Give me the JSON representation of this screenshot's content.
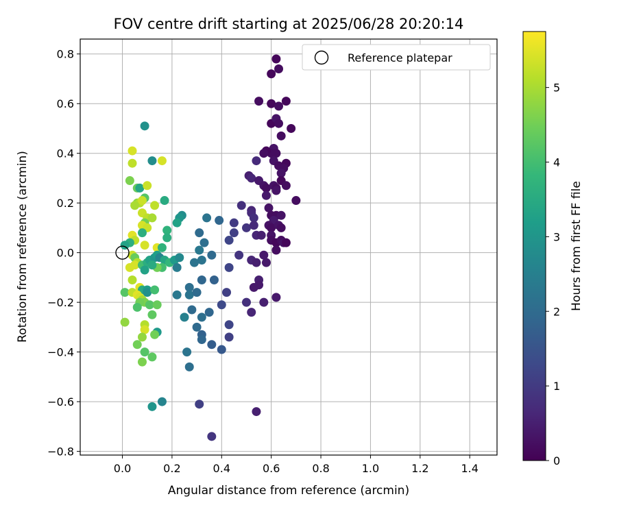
{
  "chart_data": {
    "type": "scatter",
    "title": "FOV centre drift starting at 2025/06/28 20:20:14",
    "xlabel": "Angular distance from reference (arcmin)",
    "ylabel": "Rotation from reference (arcmin)",
    "xlim": [
      -0.17,
      1.51
    ],
    "ylim": [
      -0.815,
      0.86
    ],
    "xticks": [
      0.0,
      0.2,
      0.4,
      0.6,
      0.8,
      1.0,
      1.2,
      1.4
    ],
    "xtick_labels": [
      "0.0",
      "0.2",
      "0.4",
      "0.6",
      "0.8",
      "1.0",
      "1.2",
      "1.4"
    ],
    "yticks": [
      -0.8,
      -0.6,
      -0.4,
      -0.2,
      0.0,
      0.2,
      0.4,
      0.6,
      0.8
    ],
    "ytick_labels": [
      "−0.8",
      "−0.6",
      "−0.4",
      "−0.2",
      "0.0",
      "0.2",
      "0.4",
      "0.6",
      "0.8"
    ],
    "grid": true,
    "legend": {
      "placement": "top-right",
      "entries": [
        {
          "label": "Reference platepar",
          "marker": "open-circle",
          "x": 0.0,
          "y": 0.0
        }
      ]
    },
    "colorbar": {
      "label": "Hours from first FF file",
      "colormap": "viridis",
      "range": [
        0,
        5.75
      ],
      "ticks": [
        0,
        1,
        2,
        3,
        4,
        5
      ],
      "tick_labels": [
        "0",
        "1",
        "2",
        "3",
        "4",
        "5"
      ]
    },
    "colormap_stops": [
      "#440154",
      "#482878",
      "#3e4989",
      "#31688e",
      "#26828e",
      "#1f9e89",
      "#35b779",
      "#6ece58",
      "#b5de2b",
      "#fde725"
    ],
    "points_columns": [
      "x",
      "y",
      "hours"
    ],
    "points": [
      [
        0.62,
        0.78,
        0.1
      ],
      [
        0.63,
        0.74,
        0.2
      ],
      [
        0.6,
        0.72,
        0.1
      ],
      [
        0.55,
        0.61,
        0.2
      ],
      [
        0.6,
        0.6,
        0.1
      ],
      [
        0.63,
        0.59,
        0.2
      ],
      [
        0.66,
        0.61,
        0.1
      ],
      [
        0.6,
        0.52,
        0.1
      ],
      [
        0.62,
        0.54,
        0.3
      ],
      [
        0.63,
        0.52,
        0.2
      ],
      [
        0.68,
        0.5,
        0.1
      ],
      [
        0.64,
        0.47,
        0.2
      ],
      [
        0.61,
        0.42,
        0.3
      ],
      [
        0.6,
        0.4,
        0.2
      ],
      [
        0.58,
        0.41,
        0.1
      ],
      [
        0.57,
        0.4,
        0.2
      ],
      [
        0.62,
        0.4,
        0.2
      ],
      [
        0.61,
        0.37,
        0.3
      ],
      [
        0.63,
        0.35,
        0.2
      ],
      [
        0.66,
        0.36,
        0.1
      ],
      [
        0.65,
        0.34,
        0.2
      ],
      [
        0.64,
        0.32,
        0.3
      ],
      [
        0.54,
        0.37,
        0.7
      ],
      [
        0.51,
        0.31,
        0.5
      ],
      [
        0.52,
        0.3,
        0.6
      ],
      [
        0.55,
        0.29,
        0.4
      ],
      [
        0.57,
        0.27,
        0.3
      ],
      [
        0.58,
        0.26,
        0.2
      ],
      [
        0.61,
        0.27,
        0.3
      ],
      [
        0.62,
        0.26,
        0.2
      ],
      [
        0.64,
        0.29,
        0.1
      ],
      [
        0.66,
        0.27,
        0.2
      ],
      [
        0.62,
        0.25,
        0.3
      ],
      [
        0.58,
        0.23,
        0.4
      ],
      [
        0.7,
        0.21,
        0.2
      ],
      [
        0.48,
        0.19,
        0.8
      ],
      [
        0.52,
        0.17,
        0.6
      ],
      [
        0.52,
        0.16,
        0.7
      ],
      [
        0.53,
        0.14,
        0.8
      ],
      [
        0.59,
        0.18,
        0.3
      ],
      [
        0.6,
        0.15,
        0.2
      ],
      [
        0.62,
        0.15,
        0.2
      ],
      [
        0.64,
        0.15,
        0.3
      ],
      [
        0.61,
        0.13,
        0.4
      ],
      [
        0.59,
        0.11,
        0.3
      ],
      [
        0.6,
        0.1,
        0.2
      ],
      [
        0.63,
        0.11,
        0.3
      ],
      [
        0.64,
        0.1,
        0.2
      ],
      [
        0.5,
        0.1,
        0.9
      ],
      [
        0.53,
        0.11,
        0.7
      ],
      [
        0.45,
        0.12,
        1.0
      ],
      [
        0.45,
        0.08,
        1.1
      ],
      [
        0.43,
        0.05,
        1.2
      ],
      [
        0.54,
        0.07,
        0.6
      ],
      [
        0.56,
        0.07,
        0.5
      ],
      [
        0.6,
        0.07,
        0.3
      ],
      [
        0.6,
        0.05,
        0.2
      ],
      [
        0.62,
        0.04,
        0.1
      ],
      [
        0.64,
        0.05,
        0.2
      ],
      [
        0.65,
        0.04,
        0.3
      ],
      [
        0.66,
        0.04,
        0.1
      ],
      [
        0.62,
        0.01,
        0.2
      ],
      [
        0.57,
        -0.01,
        0.4
      ],
      [
        0.52,
        -0.03,
        0.6
      ],
      [
        0.54,
        -0.04,
        0.5
      ],
      [
        0.58,
        -0.04,
        0.4
      ],
      [
        0.47,
        -0.01,
        0.9
      ],
      [
        0.43,
        -0.06,
        1.2
      ],
      [
        0.55,
        -0.11,
        0.5
      ],
      [
        0.55,
        -0.13,
        0.4
      ],
      [
        0.53,
        -0.14,
        0.4
      ],
      [
        0.42,
        -0.16,
        1.1
      ],
      [
        0.4,
        -0.21,
        1.3
      ],
      [
        0.5,
        -0.2,
        0.8
      ],
      [
        0.57,
        -0.2,
        0.5
      ],
      [
        0.52,
        -0.24,
        0.6
      ],
      [
        0.62,
        -0.18,
        0.4
      ],
      [
        0.43,
        -0.29,
        1.2
      ],
      [
        0.43,
        -0.34,
        1.1
      ],
      [
        0.54,
        -0.64,
        0.5
      ],
      [
        0.36,
        -0.74,
        0.9
      ],
      [
        0.31,
        -0.61,
        1.1
      ],
      [
        0.09,
        0.51,
        2.9
      ],
      [
        0.12,
        0.37,
        2.8
      ],
      [
        0.16,
        0.37,
        5.4
      ],
      [
        0.04,
        0.41,
        5.4
      ],
      [
        0.04,
        0.36,
        5.2
      ],
      [
        0.03,
        0.29,
        4.6
      ],
      [
        0.06,
        0.26,
        4.4
      ],
      [
        0.07,
        0.26,
        3.4
      ],
      [
        0.1,
        0.27,
        5.3
      ],
      [
        0.09,
        0.22,
        4.2
      ],
      [
        0.06,
        0.2,
        4.8
      ],
      [
        0.07,
        0.2,
        5.1
      ],
      [
        0.08,
        0.21,
        5.3
      ],
      [
        0.05,
        0.19,
        5.0
      ],
      [
        0.13,
        0.19,
        5.2
      ],
      [
        0.17,
        0.21,
        3.5
      ],
      [
        0.08,
        0.16,
        5.3
      ],
      [
        0.1,
        0.14,
        5.2
      ],
      [
        0.12,
        0.14,
        5.0
      ],
      [
        0.09,
        0.12,
        4.5
      ],
      [
        0.08,
        0.11,
        5.4
      ],
      [
        0.1,
        0.1,
        5.3
      ],
      [
        0.24,
        0.15,
        2.8
      ],
      [
        0.23,
        0.14,
        3.0
      ],
      [
        0.22,
        0.12,
        3.3
      ],
      [
        0.34,
        0.14,
        2.2
      ],
      [
        0.31,
        0.08,
        2.0
      ],
      [
        0.39,
        0.13,
        1.9
      ],
      [
        0.18,
        0.09,
        3.7
      ],
      [
        0.18,
        0.06,
        3.6
      ],
      [
        0.08,
        0.08,
        3.6
      ],
      [
        0.04,
        0.07,
        5.5
      ],
      [
        0.05,
        0.05,
        5.2
      ],
      [
        0.03,
        0.04,
        3.6
      ],
      [
        0.01,
        0.03,
        3.3
      ],
      [
        0.09,
        0.03,
        5.4
      ],
      [
        0.14,
        0.02,
        5.5
      ],
      [
        0.16,
        0.02,
        3.7
      ],
      [
        0.04,
        -0.01,
        5.3
      ],
      [
        0.05,
        -0.02,
        4.4
      ],
      [
        0.06,
        -0.04,
        5.1
      ],
      [
        0.05,
        -0.05,
        5.4
      ],
      [
        0.08,
        -0.05,
        4.0
      ],
      [
        0.1,
        -0.04,
        3.6
      ],
      [
        0.11,
        -0.03,
        3.3
      ],
      [
        0.13,
        -0.02,
        3.0
      ],
      [
        0.14,
        -0.01,
        3.2
      ],
      [
        0.15,
        -0.02,
        2.6
      ],
      [
        0.17,
        -0.03,
        3.4
      ],
      [
        0.19,
        -0.04,
        3.8
      ],
      [
        0.21,
        -0.03,
        3.1
      ],
      [
        0.23,
        -0.02,
        2.7
      ],
      [
        0.22,
        -0.06,
        2.4
      ],
      [
        0.16,
        -0.06,
        4.0
      ],
      [
        0.14,
        -0.06,
        4.5
      ],
      [
        0.09,
        -0.07,
        3.3
      ],
      [
        0.12,
        -0.05,
        3.5
      ],
      [
        0.03,
        -0.06,
        5.4
      ],
      [
        0.31,
        0.01,
        2.3
      ],
      [
        0.33,
        0.04,
        2.1
      ],
      [
        0.32,
        -0.03,
        2.2
      ],
      [
        0.29,
        -0.04,
        2.2
      ],
      [
        0.36,
        -0.01,
        2.0
      ],
      [
        0.04,
        -0.11,
        5.1
      ],
      [
        0.07,
        -0.14,
        5.5
      ],
      [
        0.08,
        -0.15,
        3.5
      ],
      [
        0.1,
        -0.15,
        3.2
      ],
      [
        0.1,
        -0.16,
        2.9
      ],
      [
        0.13,
        -0.15,
        4.0
      ],
      [
        0.01,
        -0.16,
        4.2
      ],
      [
        0.04,
        -0.16,
        5.2
      ],
      [
        0.06,
        -0.17,
        5.5
      ],
      [
        0.07,
        -0.18,
        5.4
      ],
      [
        0.08,
        -0.19,
        5.0
      ],
      [
        0.09,
        -0.2,
        4.6
      ],
      [
        0.07,
        -0.2,
        4.5
      ],
      [
        0.06,
        -0.22,
        4.1
      ],
      [
        0.11,
        -0.21,
        4.2
      ],
      [
        0.14,
        -0.21,
        4.4
      ],
      [
        0.12,
        -0.25,
        4.3
      ],
      [
        0.25,
        -0.26,
        2.5
      ],
      [
        0.22,
        -0.17,
        2.3
      ],
      [
        0.27,
        -0.14,
        2.1
      ],
      [
        0.27,
        -0.17,
        2.2
      ],
      [
        0.3,
        -0.16,
        2.0
      ],
      [
        0.32,
        -0.11,
        1.9
      ],
      [
        0.37,
        -0.11,
        1.8
      ],
      [
        0.28,
        -0.23,
        2.0
      ],
      [
        0.32,
        -0.26,
        2.1
      ],
      [
        0.35,
        -0.24,
        1.9
      ],
      [
        0.09,
        -0.29,
        5.1
      ],
      [
        0.09,
        -0.31,
        5.4
      ],
      [
        0.14,
        -0.32,
        3.1
      ],
      [
        0.13,
        -0.33,
        4.5
      ],
      [
        0.08,
        -0.34,
        4.8
      ],
      [
        0.06,
        -0.37,
        4.5
      ],
      [
        0.3,
        -0.3,
        2.0
      ],
      [
        0.32,
        -0.33,
        1.8
      ],
      [
        0.32,
        -0.35,
        1.9
      ],
      [
        0.36,
        -0.37,
        1.7
      ],
      [
        0.4,
        -0.39,
        1.6
      ],
      [
        0.26,
        -0.4,
        2.2
      ],
      [
        0.27,
        -0.46,
        2.1
      ],
      [
        0.09,
        -0.4,
        4.2
      ],
      [
        0.12,
        -0.42,
        4.3
      ],
      [
        0.08,
        -0.44,
        4.6
      ],
      [
        0.01,
        -0.28,
        4.8
      ],
      [
        0.16,
        -0.6,
        2.6
      ],
      [
        0.12,
        -0.62,
        3.0
      ]
    ]
  }
}
